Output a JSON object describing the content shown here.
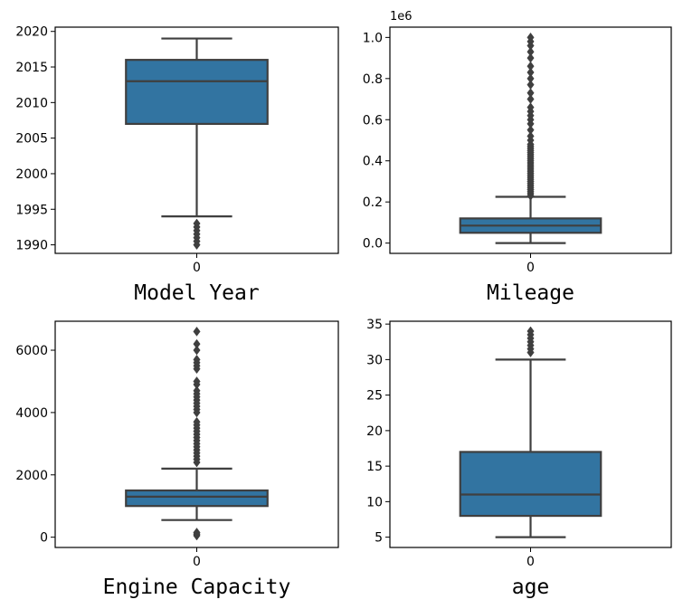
{
  "chart_data": [
    {
      "type": "box",
      "id": "model-year",
      "xlabel": "Model Year",
      "category": "0",
      "ylim": [
        1988.8,
        2020.6
      ],
      "yticks": [
        1990,
        1995,
        2000,
        2005,
        2010,
        2015,
        2020
      ],
      "ytick_labels": [
        "1990",
        "1995",
        "2000",
        "2005",
        "2010",
        "2015",
        "2020"
      ],
      "offset_text": "",
      "box": {
        "q1": 2007,
        "median": 2013,
        "q3": 2016,
        "whisker_low": 1994,
        "whisker_high": 2019
      },
      "outliers": [
        1993,
        1992.5,
        1992,
        1991.5,
        1991,
        1990.5,
        1990
      ]
    },
    {
      "type": "box",
      "id": "mileage",
      "xlabel": "Mileage",
      "category": "0",
      "ylim": [
        -0.05,
        1.05
      ],
      "yticks": [
        0.0,
        0.2,
        0.4,
        0.6,
        0.8,
        1.0
      ],
      "ytick_labels": [
        "0.0",
        "0.2",
        "0.4",
        "0.6",
        "0.8",
        "1.0"
      ],
      "offset_text": "1e6",
      "box": {
        "q1": 0.05,
        "median": 0.085,
        "q3": 0.12,
        "whisker_low": 0.0,
        "whisker_high": 0.225
      },
      "outliers": [
        0.23,
        0.24,
        0.25,
        0.26,
        0.27,
        0.28,
        0.29,
        0.3,
        0.31,
        0.32,
        0.33,
        0.34,
        0.35,
        0.36,
        0.37,
        0.38,
        0.39,
        0.4,
        0.41,
        0.42,
        0.43,
        0.44,
        0.45,
        0.46,
        0.47,
        0.48,
        0.5,
        0.52,
        0.55,
        0.58,
        0.6,
        0.62,
        0.64,
        0.66,
        0.7,
        0.73,
        0.77,
        0.8,
        0.83,
        0.86,
        0.9,
        0.93,
        0.96,
        0.98,
        1.0
      ]
    },
    {
      "type": "box",
      "id": "engine-capacity",
      "xlabel": "Engine Capacity",
      "category": "0",
      "ylim": [
        -330,
        6930
      ],
      "yticks": [
        0,
        2000,
        4000,
        6000
      ],
      "ytick_labels": [
        "0",
        "2000",
        "4000",
        "6000"
      ],
      "offset_text": "",
      "box": {
        "q1": 1000,
        "median": 1300,
        "q3": 1500,
        "whisker_low": 550,
        "whisker_high": 2200
      },
      "outliers": [
        50,
        100,
        150,
        2400,
        2500,
        2600,
        2700,
        2800,
        2900,
        3000,
        3100,
        3200,
        3300,
        3400,
        3500,
        3600,
        3700,
        4000,
        4100,
        4200,
        4300,
        4400,
        4500,
        4600,
        4700,
        4900,
        5000,
        5400,
        5500,
        5600,
        5700,
        6000,
        6200,
        6600
      ]
    },
    {
      "type": "box",
      "id": "age",
      "xlabel": "age",
      "category": "0",
      "ylim": [
        3.55,
        35.4
      ],
      "yticks": [
        5,
        10,
        15,
        20,
        25,
        30,
        35
      ],
      "ytick_labels": [
        "5",
        "10",
        "15",
        "20",
        "25",
        "30",
        "35"
      ],
      "offset_text": "",
      "box": {
        "q1": 8,
        "median": 11,
        "q3": 17,
        "whisker_low": 5,
        "whisker_high": 30
      },
      "outliers": [
        31,
        31.5,
        32,
        32.5,
        33,
        33.5,
        34
      ]
    }
  ],
  "colors": {
    "box_fill": "#3274a1",
    "line": "#3f3f3f"
  }
}
